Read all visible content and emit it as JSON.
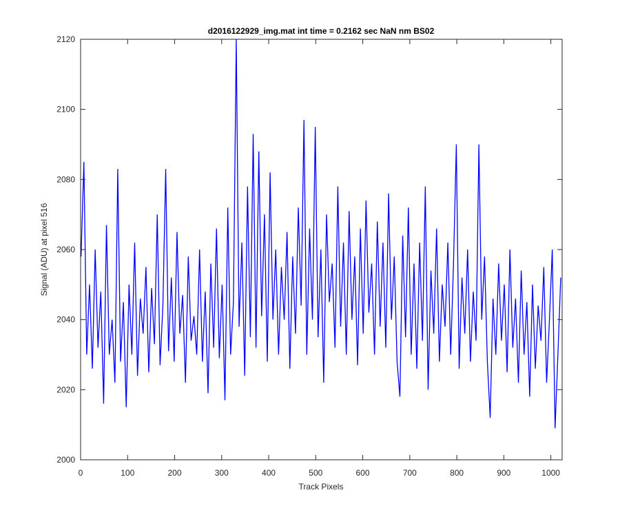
{
  "chart_data": {
    "type": "line",
    "title": "d2016122929_img.mat int time = 0.2162 sec  NaN nm BS02",
    "x_label": "Track Pixels",
    "y_label": "Signal (ADU) at pixel 516",
    "xlim": [
      0,
      1024
    ],
    "ylim": [
      2000,
      2120
    ],
    "xticks": [
      0,
      100,
      200,
      300,
      400,
      500,
      600,
      700,
      800,
      900,
      1000
    ],
    "yticks": [
      2000,
      2020,
      2040,
      2060,
      2080,
      2100,
      2120
    ],
    "series": [
      {
        "color": "#0000ff",
        "x": [
          1,
          7,
          13,
          19,
          25,
          31,
          37,
          43,
          49,
          55,
          61,
          67,
          73,
          79,
          85,
          91,
          97,
          103,
          109,
          115,
          121,
          127,
          133,
          139,
          145,
          151,
          157,
          163,
          169,
          175,
          181,
          187,
          193,
          199,
          205,
          211,
          217,
          223,
          229,
          235,
          241,
          247,
          253,
          259,
          265,
          271,
          277,
          283,
          289,
          295,
          301,
          307,
          313,
          319,
          325,
          331,
          337,
          343,
          349,
          355,
          361,
          367,
          373,
          379,
          385,
          391,
          397,
          403,
          409,
          415,
          421,
          427,
          433,
          439,
          445,
          451,
          457,
          463,
          469,
          475,
          481,
          487,
          493,
          499,
          505,
          511,
          517,
          523,
          529,
          535,
          541,
          547,
          553,
          559,
          565,
          571,
          577,
          583,
          589,
          595,
          601,
          607,
          613,
          619,
          625,
          631,
          637,
          643,
          649,
          655,
          661,
          667,
          673,
          679,
          685,
          691,
          697,
          703,
          709,
          715,
          721,
          727,
          733,
          739,
          745,
          751,
          757,
          763,
          769,
          775,
          781,
          787,
          793,
          799,
          805,
          811,
          817,
          823,
          829,
          835,
          841,
          847,
          853,
          859,
          865,
          871,
          877,
          883,
          889,
          895,
          901,
          907,
          913,
          919,
          925,
          931,
          937,
          943,
          949,
          955,
          961,
          967,
          973,
          979,
          985,
          991,
          997,
          1003,
          1009,
          1015,
          1021
        ],
        "values": [
          2058,
          2085,
          2030,
          2050,
          2026,
          2060,
          2032,
          2048,
          2016,
          2067,
          2030,
          2040,
          2022,
          2083,
          2028,
          2045,
          2015,
          2050,
          2030,
          2062,
          2024,
          2046,
          2036,
          2055,
          2025,
          2049,
          2033,
          2070,
          2027,
          2044,
          2083,
          2031,
          2052,
          2028,
          2065,
          2036,
          2047,
          2022,
          2058,
          2034,
          2041,
          2030,
          2060,
          2028,
          2048,
          2019,
          2056,
          2032,
          2066,
          2029,
          2050,
          2017,
          2072,
          2030,
          2045,
          2120,
          2038,
          2062,
          2024,
          2078,
          2035,
          2093,
          2032,
          2088,
          2041,
          2070,
          2028,
          2082,
          2040,
          2060,
          2030,
          2055,
          2040,
          2065,
          2026,
          2058,
          2036,
          2072,
          2044,
          2097,
          2030,
          2066,
          2040,
          2095,
          2035,
          2060,
          2022,
          2070,
          2045,
          2056,
          2032,
          2078,
          2038,
          2062,
          2030,
          2071,
          2040,
          2058,
          2027,
          2066,
          2036,
          2074,
          2042,
          2056,
          2030,
          2068,
          2038,
          2062,
          2032,
          2076,
          2040,
          2058,
          2028,
          2018,
          2064,
          2035,
          2072,
          2030,
          2056,
          2026,
          2062,
          2034,
          2078,
          2020,
          2054,
          2036,
          2066,
          2028,
          2050,
          2038,
          2062,
          2030,
          2056,
          2090,
          2026,
          2052,
          2036,
          2060,
          2028,
          2048,
          2034,
          2090,
          2040,
          2058,
          2028,
          2012,
          2046,
          2030,
          2056,
          2034,
          2050,
          2025,
          2060,
          2032,
          2046,
          2022,
          2054,
          2030,
          2045,
          2018,
          2050,
          2026,
          2044,
          2034,
          2055,
          2022,
          2040,
          2060,
          2009,
          2030,
          2052
        ]
      }
    ]
  }
}
